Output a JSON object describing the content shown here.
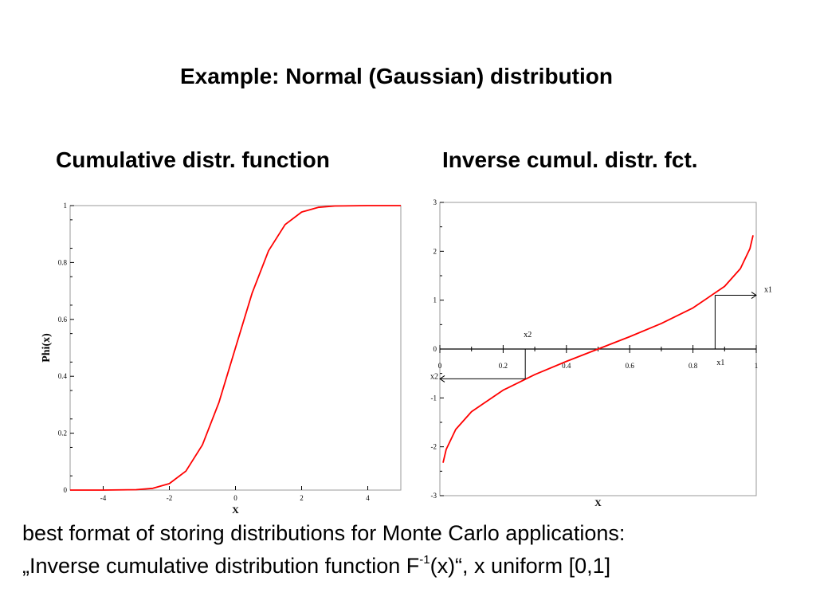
{
  "title": "Example:  Normal (Gaussian) distribution",
  "caption": {
    "line1": "best format of storing distributions for Monte Carlo applications:",
    "line2_before": "„Inverse cumulative distribution function F",
    "line2_sup": "-1",
    "line2_after": "(x)“, x uniform [0,1]"
  },
  "colors": {
    "curve": "#ff0000",
    "axis": "#000000",
    "frame": "#9a9a9a"
  },
  "chart_data": [
    {
      "type": "line",
      "title": "Cumulative distr. function",
      "function": "normal CDF",
      "xlabel": "X",
      "ylabel": "Phi(x)",
      "xlim": [
        -5,
        5
      ],
      "ylim": [
        0,
        1
      ],
      "x_ticks": [
        -4,
        -2,
        0,
        2,
        4
      ],
      "x_tick_labels": [
        "-4",
        "-2",
        "0",
        "2",
        "4"
      ],
      "y_ticks": [
        0,
        0.2,
        0.4,
        0.6,
        0.8,
        1
      ],
      "y_tick_labels": [
        "0",
        "0.2",
        "0.4",
        "0.6",
        "0.8",
        "1"
      ],
      "x": [
        -5,
        -4,
        -3,
        -2.5,
        -2,
        -1.5,
        -1,
        -0.5,
        0,
        0.5,
        1,
        1.5,
        2,
        2.5,
        3,
        4,
        5
      ],
      "y": [
        0,
        3e-05,
        0.0013,
        0.0062,
        0.0228,
        0.0668,
        0.1587,
        0.3085,
        0.5,
        0.6915,
        0.8413,
        0.9332,
        0.9772,
        0.9938,
        0.9987,
        0.99997,
        1
      ]
    },
    {
      "type": "line",
      "title": "Inverse cumul. distr. fct.",
      "function": "inverse normal CDF",
      "xlabel": "X",
      "ylabel": "",
      "xlim": [
        0,
        1
      ],
      "ylim": [
        -3,
        3
      ],
      "x_ticks": [
        0,
        0.2,
        0.4,
        0.6,
        0.8,
        1
      ],
      "x_tick_labels": [
        "0",
        "0.2",
        "0.4",
        "0.6",
        "0.8",
        "1"
      ],
      "y_ticks": [
        -3,
        -2,
        -1,
        0,
        1,
        2,
        3
      ],
      "y_tick_labels": [
        "-3",
        "-2",
        "-1",
        "0",
        "1",
        "2",
        "3"
      ],
      "x": [
        0.01,
        0.02,
        0.05,
        0.1,
        0.2,
        0.3,
        0.4,
        0.5,
        0.6,
        0.7,
        0.8,
        0.9,
        0.95,
        0.98,
        0.99
      ],
      "y": [
        -2.326,
        -2.054,
        -1.645,
        -1.282,
        -0.842,
        -0.524,
        -0.253,
        0,
        0.253,
        0.524,
        0.842,
        1.282,
        1.645,
        2.054,
        2.326
      ],
      "annotations": [
        {
          "label": "x2",
          "x": 0.27,
          "y": -0.61,
          "side": "left"
        },
        {
          "label": "x1",
          "x": 0.87,
          "y": 1.1,
          "side": "right"
        }
      ]
    }
  ]
}
